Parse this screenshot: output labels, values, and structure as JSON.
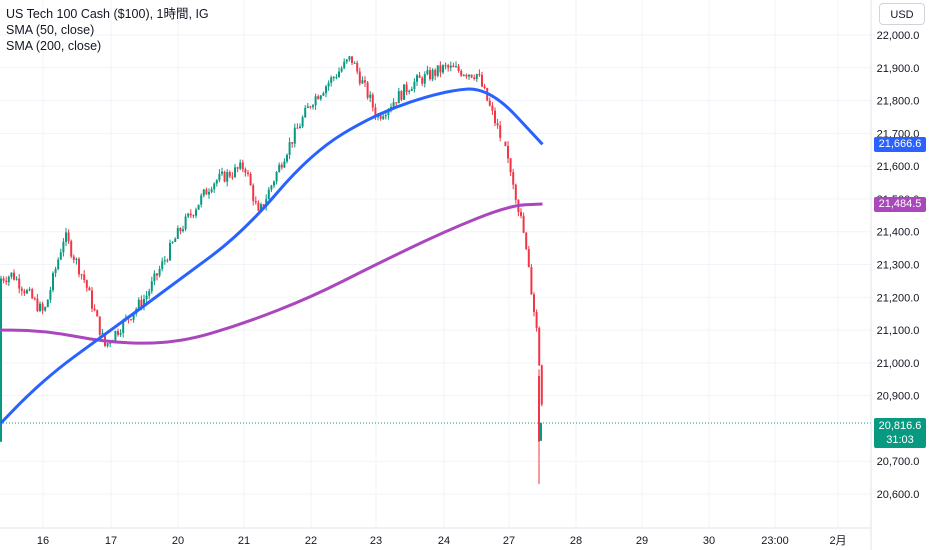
{
  "legend": {
    "title": "US Tech 100 Cash ($100), 1時間, IG",
    "sma50": "SMA (50, close)",
    "sma200": "SMA (200, close)"
  },
  "currency_button": "USD",
  "price_tags": {
    "sma50": "21,666.6",
    "sma200": "21,484.5",
    "last_price": "20,816.6",
    "countdown": "31:03"
  },
  "colors": {
    "up": "#089981",
    "down": "#f23645",
    "sma50": "#2962ff",
    "sma200": "#ab47bc",
    "grid": "#f0f3fa",
    "axis_text": "#131722"
  },
  "chart_data": {
    "type": "candlestick",
    "title": "US Tech 100 Cash ($100), 1時間, IG",
    "y_ticks": [
      "22,000.0",
      "21,900.0",
      "21,800.0",
      "21,700.0",
      "21,600.0",
      "21,500.0",
      "21,400.0",
      "21,300.0",
      "21,200.0",
      "21,100.0",
      "21,000.0",
      "20,900.0",
      "20,700.0",
      "20,600.0"
    ],
    "ylim": [
      20560,
      22045
    ],
    "x_ticks": [
      "16",
      "17",
      "20",
      "21",
      "22",
      "23",
      "24",
      "27",
      "28",
      "29",
      "30",
      "23:00",
      "2月"
    ],
    "last_price": 20816.6,
    "series_close": [
      {
        "x": "15",
        "y": 20760
      },
      {
        "x": "15.2",
        "y": 21250
      },
      {
        "x": "15.5",
        "y": 21270
      },
      {
        "x": "16",
        "y": 21150
      },
      {
        "x": "16.3",
        "y": 21390
      },
      {
        "x": "16.6",
        "y": 21250
      },
      {
        "x": "16.9",
        "y": 21050
      },
      {
        "x": "17",
        "y": 21080
      },
      {
        "x": "17.5",
        "y": 21200
      },
      {
        "x": "20",
        "y": 21400
      },
      {
        "x": "20.5",
        "y": 21550
      },
      {
        "x": "21",
        "y": 21600
      },
      {
        "x": "21.2",
        "y": 21450
      },
      {
        "x": "21.6",
        "y": 21640
      },
      {
        "x": "22",
        "y": 21800
      },
      {
        "x": "22.6",
        "y": 21930
      },
      {
        "x": "22.9",
        "y": 21800
      },
      {
        "x": "23",
        "y": 21750
      },
      {
        "x": "23.5",
        "y": 21850
      },
      {
        "x": "24",
        "y": 21900
      },
      {
        "x": "24.5",
        "y": 21880
      },
      {
        "x": "24.8",
        "y": 21720
      },
      {
        "x": "27",
        "y": 21600
      },
      {
        "x": "27.2",
        "y": 21400
      },
      {
        "x": "27.4",
        "y": 21100
      },
      {
        "x": "27.5",
        "y": 20816.6
      }
    ],
    "sma50": [
      {
        "x": "15",
        "y": 20750
      },
      {
        "x": "16",
        "y": 20950
      },
      {
        "x": "17",
        "y": 21100
      },
      {
        "x": "20",
        "y": 21250
      },
      {
        "x": "21",
        "y": 21400
      },
      {
        "x": "22",
        "y": 21640
      },
      {
        "x": "23",
        "y": 21760
      },
      {
        "x": "24",
        "y": 21830
      },
      {
        "x": "24.7",
        "y": 21840
      },
      {
        "x": "27.5",
        "y": 21666.6
      }
    ],
    "sma200": [
      {
        "x": "15",
        "y": 21100
      },
      {
        "x": "16",
        "y": 21100
      },
      {
        "x": "17",
        "y": 21060
      },
      {
        "x": "20",
        "y": 21060
      },
      {
        "x": "21",
        "y": 21120
      },
      {
        "x": "22",
        "y": 21200
      },
      {
        "x": "23",
        "y": 21300
      },
      {
        "x": "24",
        "y": 21400
      },
      {
        "x": "27",
        "y": 21480
      },
      {
        "x": "27.5",
        "y": 21484.5
      }
    ],
    "grid": true
  }
}
